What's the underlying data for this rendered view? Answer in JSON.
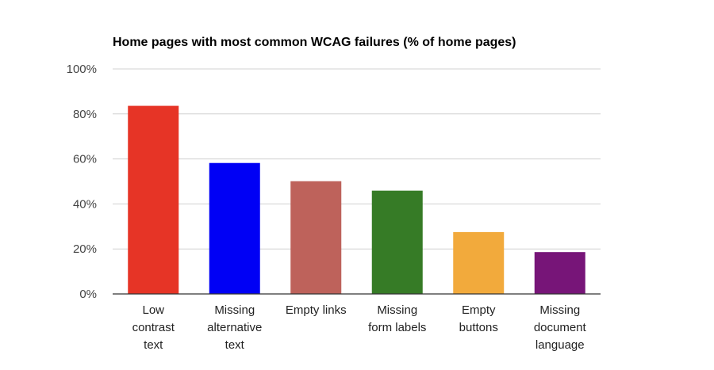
{
  "chart_data": {
    "type": "bar",
    "title": "Home pages with most common WCAG failures (% of home pages)",
    "xlabel": "",
    "ylabel": "",
    "ylim": [
      0,
      100
    ],
    "yticks": [
      "0%",
      "20%",
      "40%",
      "60%",
      "80%",
      "100%"
    ],
    "ytick_values": [
      0,
      20,
      40,
      60,
      80,
      100
    ],
    "grid": true,
    "categories": [
      [
        "Low",
        "contrast",
        "text"
      ],
      [
        "Missing",
        "alternative",
        "text"
      ],
      [
        "Empty links"
      ],
      [
        "Missing",
        "form labels"
      ],
      [
        "Empty",
        "buttons"
      ],
      [
        "Missing",
        "document",
        "language"
      ]
    ],
    "values": [
      83.6,
      58.2,
      50.1,
      45.9,
      27.5,
      18.6
    ],
    "colors": [
      "#e63426",
      "#0000f5",
      "#be625b",
      "#367b26",
      "#f2aa3c",
      "#771578"
    ]
  }
}
